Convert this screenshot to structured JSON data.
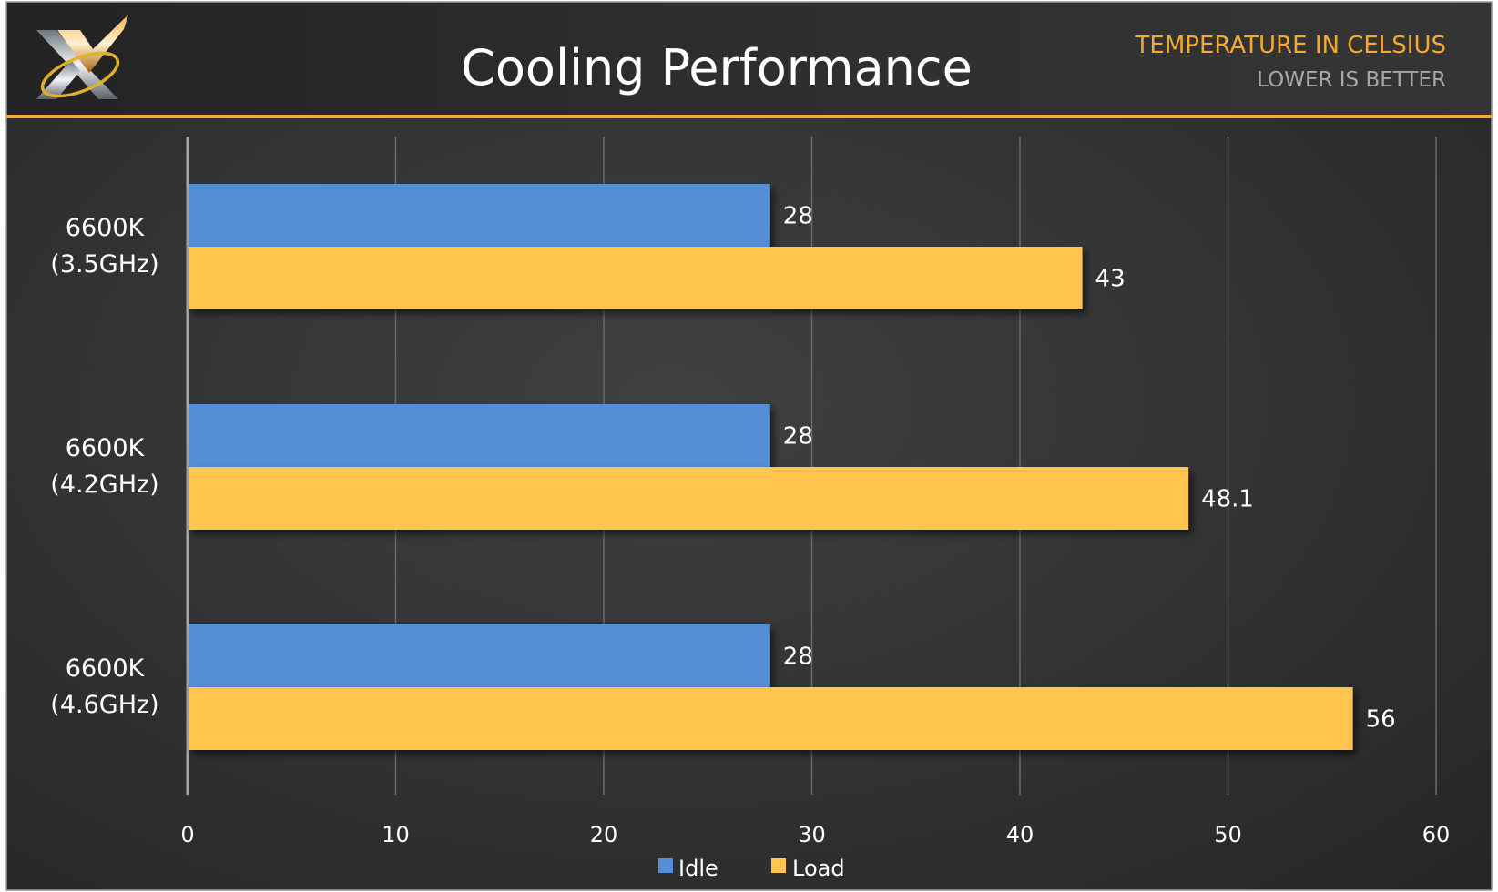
{
  "header": {
    "title": "Cooling Performance",
    "subtitle_unit": "TEMPERATURE IN CELSIUS",
    "subtitle_note": "LOWER IS BETTER",
    "logo_text": "XV"
  },
  "colors": {
    "idle": "#558ed5",
    "load": "#ffc550",
    "accent": "#f4a930",
    "background": "#333333"
  },
  "chart_data": {
    "type": "bar",
    "orientation": "horizontal",
    "title": "Cooling Performance",
    "xlabel": "",
    "ylabel": "",
    "xlim": [
      0,
      60
    ],
    "xticks": [
      "0",
      "10",
      "20",
      "30",
      "40",
      "50",
      "60"
    ],
    "grid": true,
    "legend_position": "bottom",
    "categories": [
      {
        "line1": "6600K",
        "line2": "(3.5GHz)"
      },
      {
        "line1": "6600K",
        "line2": "(4.2GHz)"
      },
      {
        "line1": "6600K",
        "line2": "(4.6GHz)"
      }
    ],
    "series": [
      {
        "name": "Idle",
        "color": "#558ed5",
        "values": [
          28,
          28,
          28
        ],
        "labels": [
          "28",
          "28",
          "28"
        ]
      },
      {
        "name": "Load",
        "color": "#ffc550",
        "values": [
          43,
          48.1,
          56
        ],
        "labels": [
          "43",
          "48.1",
          "56"
        ]
      }
    ]
  }
}
